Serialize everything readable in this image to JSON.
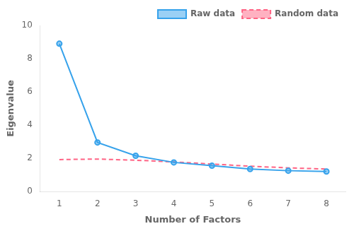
{
  "chart_data": {
    "type": "line",
    "x": [
      1,
      2,
      3,
      4,
      5,
      6,
      7,
      8
    ],
    "series": [
      {
        "name": "Raw data",
        "values": [
          8.9,
          2.95,
          2.15,
          1.75,
          1.55,
          1.35,
          1.25,
          1.2
        ],
        "marker": "circle",
        "line_style": "solid"
      },
      {
        "name": "Random data",
        "values": [
          1.92,
          1.95,
          1.88,
          1.78,
          1.65,
          1.52,
          1.42,
          1.35
        ],
        "marker": "none",
        "line_style": "dashed"
      }
    ],
    "xlabel": "Number of Factors",
    "ylabel": "Eigenvalue",
    "xlim": [
      0.5,
      8.5
    ],
    "ylim": [
      0,
      10
    ],
    "xticks": [
      1,
      2,
      3,
      4,
      5,
      6,
      7,
      8
    ],
    "yticks": [
      0,
      2,
      4,
      6,
      8,
      10
    ],
    "legend": "upper right",
    "grid": false
  }
}
